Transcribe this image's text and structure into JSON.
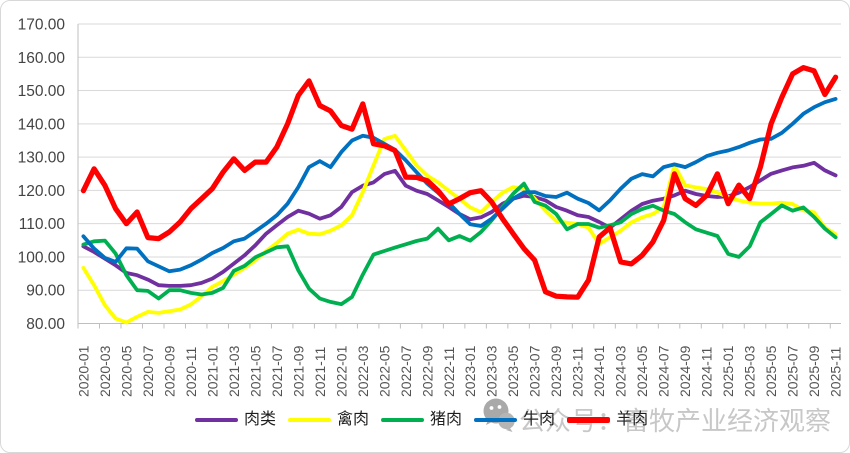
{
  "watermark": {
    "text": "公众号：畜牧产业经济观察",
    "icon": "wechat-icon",
    "color": "#c7c7c7"
  },
  "axis_style": {
    "grid_color": "#d9d9d9",
    "axis_color": "#bfbfbf",
    "y_label_color": "#444444",
    "x_label_color": "#545454"
  },
  "chart_data": {
    "type": "line",
    "title": "",
    "xlabel": "",
    "ylabel": "",
    "ylim": [
      80,
      170
    ],
    "y_ticks": [
      80,
      90,
      100,
      110,
      120,
      130,
      140,
      150,
      160,
      170
    ],
    "y_tick_decimals": 2,
    "x_tick_step": 2,
    "grid": true,
    "legend_position": "bottom",
    "x": [
      "2020-01",
      "2020-02",
      "2020-03",
      "2020-04",
      "2020-05",
      "2020-06",
      "2020-07",
      "2020-08",
      "2020-09",
      "2020-10",
      "2020-11",
      "2020-12",
      "2021-01",
      "2021-02",
      "2021-03",
      "2021-04",
      "2021-05",
      "2021-06",
      "2021-07",
      "2021-08",
      "2021-09",
      "2021-10",
      "2021-11",
      "2021-12",
      "2022-01",
      "2022-02",
      "2022-03",
      "2022-04",
      "2022-05",
      "2022-06",
      "2022-07",
      "2022-08",
      "2022-09",
      "2022-10",
      "2022-11",
      "2022-12",
      "2023-01",
      "2023-02",
      "2023-03",
      "2023-04",
      "2023-05",
      "2023-06",
      "2023-07",
      "2023-08",
      "2023-09",
      "2023-10",
      "2023-11",
      "2023-12",
      "2024-01",
      "2024-02",
      "2024-03",
      "2024-04",
      "2024-05",
      "2024-06",
      "2024-07",
      "2024-08",
      "2024-09",
      "2024-10",
      "2024-11",
      "2024-12",
      "2025-01",
      "2025-02",
      "2025-03",
      "2025-04",
      "2025-05",
      "2025-06",
      "2025-07",
      "2025-08",
      "2025-09",
      "2025-10",
      "2025-11"
    ],
    "series": [
      {
        "name": "肉类",
        "color": "#7030A0",
        "width": 3.8,
        "values": [
          103.2,
          101.5,
          99.5,
          97.5,
          95.2,
          94.5,
          93.2,
          91.5,
          91.3,
          91.3,
          91.5,
          92.2,
          93.5,
          95.5,
          98,
          100.5,
          103.5,
          107,
          109.5,
          112,
          113.9,
          113,
          111.5,
          112.5,
          115,
          119.5,
          121.4,
          122.4,
          124.9,
          125.9,
          121.4,
          119.9,
          118.9,
          117,
          115,
          112.9,
          111.3,
          111.9,
          113.5,
          116,
          117.5,
          118.4,
          118,
          117,
          115,
          113.9,
          112.5,
          112,
          110.5,
          108.8,
          111.3,
          113.9,
          115.9,
          116.9,
          117.5,
          118.5,
          119.9,
          118.9,
          118.3,
          118,
          118.2,
          119.3,
          121,
          123,
          125,
          126,
          126.9,
          127.4,
          128.3,
          126,
          124.5
        ]
      },
      {
        "name": "禽肉",
        "color": "#FFFF00",
        "width": 3.8,
        "values": [
          96.7,
          91.5,
          85.5,
          81.5,
          80.3,
          82,
          83.5,
          83.2,
          83.7,
          84.2,
          85.7,
          88.2,
          91,
          92.7,
          94.7,
          96.7,
          99,
          101.7,
          104.2,
          107,
          108.2,
          107,
          106.8,
          107.9,
          109.5,
          112.5,
          119.5,
          127.5,
          135.4,
          136.4,
          132,
          127.5,
          124.4,
          122.4,
          119.9,
          117.4,
          114.9,
          113.4,
          116.5,
          119.3,
          121,
          120.5,
          117.5,
          113.9,
          110.8,
          110.3,
          109.9,
          108.8,
          103.9,
          105.9,
          107.9,
          110.4,
          111.9,
          112.9,
          114.9,
          127.5,
          121.5,
          120.9,
          120.4,
          119.3,
          118,
          117,
          116.3,
          116,
          116,
          116.3,
          115.9,
          114,
          113.4,
          108.8,
          106.8
        ]
      },
      {
        "name": "猪肉",
        "color": "#00B050",
        "width": 3.8,
        "values": [
          103.7,
          104.7,
          104.9,
          101,
          94.5,
          90,
          89.8,
          87.5,
          90,
          90,
          89.2,
          88.7,
          89.2,
          90.7,
          95.8,
          97.3,
          99.9,
          101.4,
          102.9,
          103.2,
          96,
          90.5,
          87.5,
          86.5,
          85.8,
          88,
          94.7,
          100.7,
          101.8,
          102.8,
          103.8,
          104.8,
          105.5,
          108.5,
          105,
          106.3,
          104.9,
          107.5,
          111,
          115,
          119,
          122,
          116.5,
          115.4,
          112.9,
          108.3,
          109.9,
          109.9,
          108.8,
          109.5,
          110.4,
          112.9,
          114.4,
          115.4,
          113.9,
          112.9,
          110.4,
          108.3,
          107.3,
          106.3,
          100.9,
          100,
          103.2,
          110.4,
          112.9,
          115.5,
          113.9,
          114.9,
          112,
          108.5,
          105.9
        ]
      },
      {
        "name": "牛肉",
        "color": "#0070C0",
        "width": 3.8,
        "values": [
          106.2,
          102.5,
          99.7,
          98.5,
          102.6,
          102.5,
          98.7,
          97.2,
          95.7,
          96.2,
          97.5,
          99.2,
          101.2,
          102.7,
          104.7,
          105.5,
          107.7,
          110,
          112.5,
          116,
          121,
          127,
          128.8,
          127,
          131.5,
          135,
          136.4,
          135.8,
          134,
          132.2,
          129,
          125.5,
          122,
          119.3,
          116.3,
          112.9,
          109.8,
          109.3,
          111.5,
          114.5,
          117.5,
          119.4,
          119.5,
          118.3,
          118,
          119.3,
          117.5,
          116.2,
          114,
          117,
          120.5,
          123.5,
          124.9,
          124.2,
          127,
          127.8,
          127,
          128.5,
          130.3,
          131.3,
          132,
          133,
          134.3,
          135.3,
          135.5,
          137.3,
          140,
          143,
          145,
          146.5,
          147.5
        ]
      },
      {
        "name": "羊肉",
        "color": "#FF0000",
        "width": 5.2,
        "values": [
          119.9,
          126.5,
          121.5,
          114.5,
          110,
          113.5,
          105.8,
          105.5,
          107.5,
          110.5,
          114.5,
          117.5,
          120.5,
          125.5,
          129.5,
          126,
          128.5,
          128.5,
          133,
          140,
          148.5,
          152.9,
          145.5,
          143.9,
          139.5,
          138.4,
          146,
          134,
          133.4,
          132,
          124,
          123.9,
          122.9,
          119.9,
          115.9,
          117.5,
          119.3,
          119.9,
          116.5,
          111.5,
          107,
          102.5,
          99,
          89.5,
          88.2,
          88,
          87.9,
          93,
          106,
          108.8,
          98.5,
          97.9,
          100.5,
          104.5,
          111,
          125,
          117.5,
          115.5,
          118.5,
          125,
          116,
          121.6,
          117.5,
          127,
          140,
          148,
          155,
          156.9,
          155.9,
          148.8,
          154
        ]
      }
    ]
  }
}
